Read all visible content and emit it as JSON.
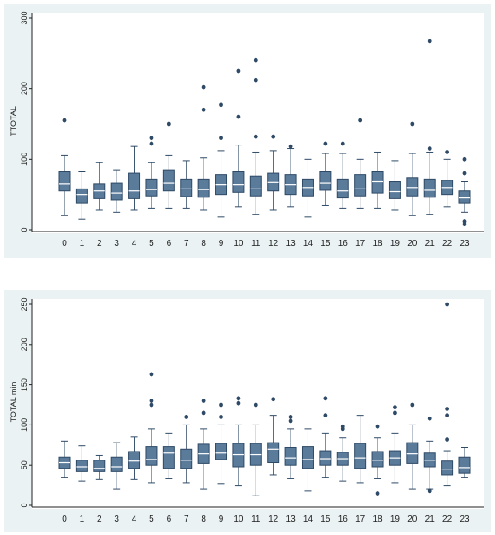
{
  "colors": {
    "panel_bg": "#eaf2f3",
    "plot_bg": "#ffffff",
    "box_fill": "#5b7b9b",
    "box_stroke": "#2e4a66",
    "outlier": "#2e4a66",
    "axis": "#222222"
  },
  "chart_data": [
    {
      "type": "box",
      "ylabel": "TTOTAL",
      "xlabel": "",
      "ylim": [
        0,
        300
      ],
      "yticks": [
        0,
        100,
        200,
        300
      ],
      "ytick_labels": [
        "0",
        "100",
        "200",
        "300"
      ],
      "categories": [
        "0",
        "1",
        "2",
        "3",
        "4",
        "5",
        "6",
        "7",
        "8",
        "9",
        "10",
        "11",
        "12",
        "13",
        "14",
        "15",
        "16",
        "17",
        "18",
        "19",
        "20",
        "21",
        "22",
        "23"
      ],
      "boxes": [
        {
          "min": 20,
          "q1": 55,
          "median": 65,
          "q3": 82,
          "max": 105,
          "outliers": [
            155
          ]
        },
        {
          "min": 15,
          "q1": 38,
          "median": 50,
          "q3": 58,
          "max": 82,
          "outliers": []
        },
        {
          "min": 28,
          "q1": 44,
          "median": 55,
          "q3": 65,
          "max": 95,
          "outliers": []
        },
        {
          "min": 25,
          "q1": 42,
          "median": 52,
          "q3": 66,
          "max": 85,
          "outliers": []
        },
        {
          "min": 28,
          "q1": 44,
          "median": 55,
          "q3": 80,
          "max": 118,
          "outliers": []
        },
        {
          "min": 30,
          "q1": 48,
          "median": 57,
          "q3": 72,
          "max": 95,
          "outliers": [
            122,
            130
          ]
        },
        {
          "min": 30,
          "q1": 55,
          "median": 66,
          "q3": 85,
          "max": 105,
          "outliers": [
            150
          ]
        },
        {
          "min": 30,
          "q1": 47,
          "median": 58,
          "q3": 72,
          "max": 98,
          "outliers": []
        },
        {
          "min": 28,
          "q1": 46,
          "median": 57,
          "q3": 72,
          "max": 102,
          "outliers": [
            170,
            202
          ]
        },
        {
          "min": 18,
          "q1": 50,
          "median": 64,
          "q3": 78,
          "max": 112,
          "outliers": [
            130,
            177
          ]
        },
        {
          "min": 32,
          "q1": 53,
          "median": 64,
          "q3": 82,
          "max": 120,
          "outliers": [
            160,
            225
          ]
        },
        {
          "min": 22,
          "q1": 48,
          "median": 58,
          "q3": 76,
          "max": 110,
          "outliers": [
            132,
            212,
            240
          ]
        },
        {
          "min": 28,
          "q1": 55,
          "median": 67,
          "q3": 80,
          "max": 112,
          "outliers": [
            132
          ]
        },
        {
          "min": 32,
          "q1": 50,
          "median": 64,
          "q3": 78,
          "max": 115,
          "outliers": [
            118
          ]
        },
        {
          "min": 18,
          "q1": 48,
          "median": 60,
          "q3": 72,
          "max": 100,
          "outliers": []
        },
        {
          "min": 35,
          "q1": 56,
          "median": 66,
          "q3": 82,
          "max": 108,
          "outliers": [
            122
          ]
        },
        {
          "min": 30,
          "q1": 45,
          "median": 55,
          "q3": 72,
          "max": 108,
          "outliers": [
            122
          ]
        },
        {
          "min": 30,
          "q1": 48,
          "median": 58,
          "q3": 78,
          "max": 100,
          "outliers": [
            155
          ]
        },
        {
          "min": 30,
          "q1": 52,
          "median": 68,
          "q3": 82,
          "max": 110,
          "outliers": []
        },
        {
          "min": 28,
          "q1": 44,
          "median": 54,
          "q3": 68,
          "max": 98,
          "outliers": []
        },
        {
          "min": 20,
          "q1": 48,
          "median": 60,
          "q3": 74,
          "max": 108,
          "outliers": [
            150
          ]
        },
        {
          "min": 22,
          "q1": 46,
          "median": 56,
          "q3": 72,
          "max": 110,
          "outliers": [
            115,
            267
          ]
        },
        {
          "min": 32,
          "q1": 50,
          "median": 60,
          "q3": 70,
          "max": 100,
          "outliers": [
            110
          ]
        },
        {
          "min": 25,
          "q1": 38,
          "median": 45,
          "q3": 55,
          "max": 68,
          "outliers": [
            8,
            12,
            80,
            100
          ]
        }
      ]
    },
    {
      "type": "box",
      "ylabel": "TOTAL min",
      "xlabel": "",
      "ylim": [
        0,
        250
      ],
      "yticks": [
        0,
        50,
        100,
        150,
        200,
        250
      ],
      "ytick_labels": [
        "0",
        "50",
        "100",
        "150",
        "200",
        "250"
      ],
      "categories": [
        "0",
        "1",
        "2",
        "3",
        "4",
        "5",
        "6",
        "7",
        "8",
        "9",
        "10",
        "11",
        "12",
        "13",
        "14",
        "15",
        "16",
        "17",
        "18",
        "19",
        "20",
        "21",
        "22",
        "23"
      ],
      "boxes": [
        {
          "min": 35,
          "q1": 46,
          "median": 53,
          "q3": 60,
          "max": 80,
          "outliers": []
        },
        {
          "min": 30,
          "q1": 42,
          "median": 48,
          "q3": 56,
          "max": 74,
          "outliers": []
        },
        {
          "min": 32,
          "q1": 42,
          "median": 46,
          "q3": 56,
          "max": 62,
          "outliers": []
        },
        {
          "min": 20,
          "q1": 42,
          "median": 48,
          "q3": 60,
          "max": 78,
          "outliers": []
        },
        {
          "min": 32,
          "q1": 46,
          "median": 55,
          "q3": 67,
          "max": 85,
          "outliers": []
        },
        {
          "min": 28,
          "q1": 50,
          "median": 57,
          "q3": 73,
          "max": 95,
          "outliers": [
            125,
            130,
            163
          ]
        },
        {
          "min": 33,
          "q1": 46,
          "median": 65,
          "q3": 73,
          "max": 90,
          "outliers": []
        },
        {
          "min": 28,
          "q1": 46,
          "median": 56,
          "q3": 70,
          "max": 100,
          "outliers": [
            110
          ]
        },
        {
          "min": 20,
          "q1": 52,
          "median": 64,
          "q3": 76,
          "max": 95,
          "outliers": [
            115,
            130
          ]
        },
        {
          "min": 27,
          "q1": 57,
          "median": 65,
          "q3": 77,
          "max": 100,
          "outliers": [
            110,
            125
          ]
        },
        {
          "min": 25,
          "q1": 48,
          "median": 63,
          "q3": 77,
          "max": 100,
          "outliers": [
            127,
            133
          ]
        },
        {
          "min": 12,
          "q1": 50,
          "median": 63,
          "q3": 77,
          "max": 100,
          "outliers": [
            125
          ]
        },
        {
          "min": 38,
          "q1": 53,
          "median": 70,
          "q3": 78,
          "max": 112,
          "outliers": [
            132
          ]
        },
        {
          "min": 33,
          "q1": 50,
          "median": 59,
          "q3": 72,
          "max": 95,
          "outliers": [
            105,
            110
          ]
        },
        {
          "min": 18,
          "q1": 46,
          "median": 57,
          "q3": 73,
          "max": 95,
          "outliers": []
        },
        {
          "min": 35,
          "q1": 50,
          "median": 58,
          "q3": 68,
          "max": 90,
          "outliers": [
            112,
            133
          ]
        },
        {
          "min": 30,
          "q1": 50,
          "median": 58,
          "q3": 66,
          "max": 84,
          "outliers": [
            95,
            98
          ]
        },
        {
          "min": 28,
          "q1": 46,
          "median": 59,
          "q3": 77,
          "max": 112,
          "outliers": []
        },
        {
          "min": 33,
          "q1": 48,
          "median": 56,
          "q3": 67,
          "max": 84,
          "outliers": [
            15,
            98
          ]
        },
        {
          "min": 28,
          "q1": 50,
          "median": 59,
          "q3": 68,
          "max": 90,
          "outliers": [
            115,
            122
          ]
        },
        {
          "min": 20,
          "q1": 52,
          "median": 64,
          "q3": 78,
          "max": 100,
          "outliers": [
            125
          ]
        },
        {
          "min": 20,
          "q1": 48,
          "median": 56,
          "q3": 65,
          "max": 80,
          "outliers": [
            18,
            108
          ]
        },
        {
          "min": 25,
          "q1": 38,
          "median": 45,
          "q3": 55,
          "max": 68,
          "outliers": [
            82,
            112,
            120,
            250
          ]
        },
        {
          "min": 35,
          "q1": 40,
          "median": 47,
          "q3": 60,
          "max": 72,
          "outliers": []
        }
      ]
    }
  ]
}
